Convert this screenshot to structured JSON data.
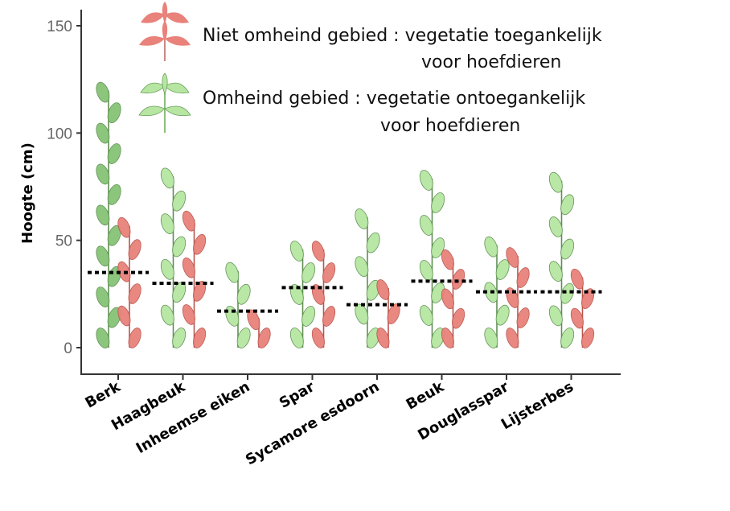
{
  "chart_data": {
    "type": "bar",
    "title": "",
    "xlabel": "",
    "ylabel": "Hoogte (cm)",
    "ylim": [
      0,
      150
    ],
    "yticks": [
      0,
      50,
      100,
      150
    ],
    "categories": [
      "Berk",
      "Haagbeuk",
      "Inheemse eiken",
      "Spar",
      "Sycamore esdoorn",
      "Beuk",
      "Douglasspar",
      "Lijsterbes"
    ],
    "series": [
      {
        "name": "Omheind gebied : vegetatie ontoegankelijk voor hoefdieren",
        "color": "#86c276",
        "values": [
          122,
          82,
          38,
          48,
          63,
          81,
          50,
          80
        ]
      },
      {
        "name": "Niet omheind gebied : vegetatie toegankelijk voor hoefdieren",
        "color": "#e8827a",
        "values": [
          59,
          62,
          16,
          48,
          30,
          44,
          45,
          35
        ]
      }
    ],
    "means": {
      "omheind": [
        35,
        30,
        17,
        28,
        20,
        31,
        26,
        26
      ],
      "niet_omheind": [
        35,
        29,
        17,
        28,
        20,
        31,
        26,
        26
      ]
    },
    "grid": false,
    "legend_position": "top-right"
  },
  "legend": {
    "line1a": "Niet omheind gebied : vegetatie toegankelijk",
    "line1b": "voor hoefdieren",
    "line2a": "Omheind gebied : vegetatie ontoegankelijk",
    "line2b": "voor hoefdieren"
  },
  "colors": {
    "fenced_leaf": "#86c276",
    "fenced_leaf_light": "#b6e6a2",
    "unfenced_leaf": "#e8827a",
    "mean_line": "#000000"
  },
  "icons": [
    "plant-icon-red",
    "plant-icon-green"
  ]
}
